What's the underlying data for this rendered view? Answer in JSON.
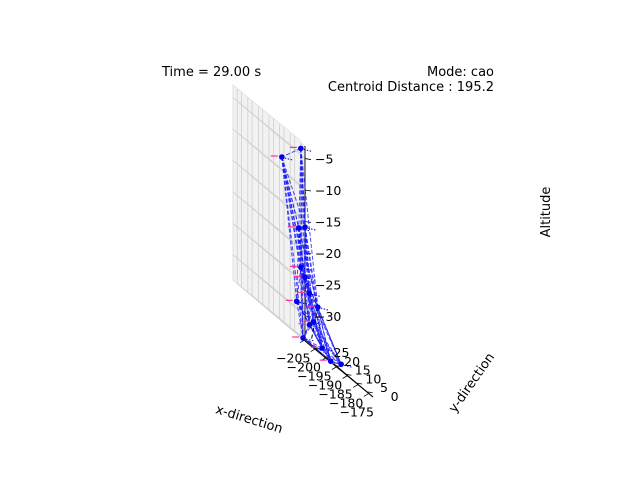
{
  "header": {
    "time_text": "Time = 29.00 s",
    "mode_text": "Mode: cao",
    "centroid_text": "Centroid Distance : 195.2"
  },
  "chart_data": {
    "type": "scatter3d",
    "title": "",
    "xlabel": "x-direction",
    "ylabel": "y-direction",
    "zlabel": "Altitude",
    "xlim": [
      -207,
      -173
    ],
    "ylim": [
      -3,
      29
    ],
    "zlim": [
      -34,
      -3
    ],
    "xticks": [
      -205,
      -200,
      -195,
      -190,
      -185,
      -180,
      -175
    ],
    "xtick_labels": [
      "−205",
      "−200",
      "−195",
      "−190",
      "−185",
      "−180",
      "−175"
    ],
    "yticks": [
      0,
      5,
      10,
      15,
      20,
      25
    ],
    "ytick_labels": [
      "0",
      "5",
      "10",
      "15",
      "20",
      "25"
    ],
    "zticks": [
      -30,
      -25,
      -20,
      -15,
      -10,
      -5
    ],
    "ztick_labels": [
      "−30",
      "−25",
      "−20",
      "−15",
      "−10",
      "−5"
    ],
    "grid": true,
    "colors": {
      "agents": "#0000ee",
      "edges": "#1a1aff",
      "markers": "#ff3399",
      "heading": "#0000cc",
      "target": "#000000"
    },
    "agents": [
      {
        "x": -182,
        "y": 22,
        "z": -4
      },
      {
        "x": -200,
        "y": 13,
        "z": -8
      },
      {
        "x": -187,
        "y": 15,
        "z": -16
      },
      {
        "x": -193,
        "y": 12,
        "z": -17
      },
      {
        "x": -194,
        "y": 10,
        "z": -23
      },
      {
        "x": -190,
        "y": 12,
        "z": -24
      },
      {
        "x": -189,
        "y": 11,
        "z": -26
      },
      {
        "x": -180,
        "y": 16,
        "z": -27
      },
      {
        "x": -200,
        "y": 6,
        "z": -29
      },
      {
        "x": -188,
        "y": 10,
        "z": -30
      },
      {
        "x": -193,
        "y": 7,
        "z": -31
      },
      {
        "x": -186,
        "y": 8,
        "z": -33
      },
      {
        "x": -202,
        "y": 1,
        "z": -34
      },
      {
        "x": -177,
        "y": 8,
        "z": -33
      },
      {
        "x": -192,
        "y": -2,
        "z": -34
      }
    ],
    "edges": [
      [
        0,
        1
      ],
      [
        0,
        2
      ],
      [
        0,
        3
      ],
      [
        0,
        4
      ],
      [
        0,
        5
      ],
      [
        0,
        6
      ],
      [
        0,
        7
      ],
      [
        0,
        10
      ],
      [
        0,
        12
      ],
      [
        1,
        2
      ],
      [
        1,
        3
      ],
      [
        1,
        4
      ],
      [
        1,
        5
      ],
      [
        1,
        6
      ],
      [
        1,
        8
      ],
      [
        1,
        10
      ],
      [
        1,
        12
      ],
      [
        1,
        14
      ],
      [
        2,
        3
      ],
      [
        2,
        5
      ],
      [
        2,
        6
      ],
      [
        2,
        7
      ],
      [
        2,
        9
      ],
      [
        2,
        11
      ],
      [
        3,
        4
      ],
      [
        3,
        5
      ],
      [
        3,
        7
      ],
      [
        3,
        8
      ],
      [
        3,
        10
      ],
      [
        3,
        12
      ],
      [
        4,
        5
      ],
      [
        4,
        6
      ],
      [
        4,
        8
      ],
      [
        4,
        9
      ],
      [
        4,
        10
      ],
      [
        4,
        11
      ],
      [
        4,
        12
      ],
      [
        4,
        13
      ],
      [
        4,
        14
      ],
      [
        5,
        6
      ],
      [
        5,
        7
      ],
      [
        5,
        9
      ],
      [
        5,
        11
      ],
      [
        5,
        13
      ],
      [
        6,
        7
      ],
      [
        6,
        9
      ],
      [
        6,
        10
      ],
      [
        6,
        11
      ],
      [
        6,
        13
      ],
      [
        6,
        14
      ],
      [
        7,
        8
      ],
      [
        7,
        9
      ],
      [
        7,
        10
      ],
      [
        7,
        11
      ],
      [
        7,
        12
      ],
      [
        7,
        13
      ],
      [
        7,
        14
      ],
      [
        8,
        9
      ],
      [
        8,
        10
      ],
      [
        8,
        11
      ],
      [
        8,
        12
      ],
      [
        8,
        13
      ],
      [
        8,
        14
      ],
      [
        9,
        10
      ],
      [
        9,
        11
      ],
      [
        9,
        12
      ],
      [
        9,
        13
      ],
      [
        9,
        14
      ],
      [
        10,
        11
      ],
      [
        10,
        12
      ],
      [
        10,
        13
      ],
      [
        10,
        14
      ],
      [
        11,
        12
      ],
      [
        11,
        13
      ],
      [
        11,
        14
      ],
      [
        12,
        13
      ],
      [
        12,
        14
      ],
      [
        13,
        14
      ]
    ],
    "target_line": {
      "from": {
        "x": -180,
        "y": 16,
        "z": -27
      },
      "to": {
        "x": -175,
        "y": 24,
        "z": -33
      }
    }
  }
}
